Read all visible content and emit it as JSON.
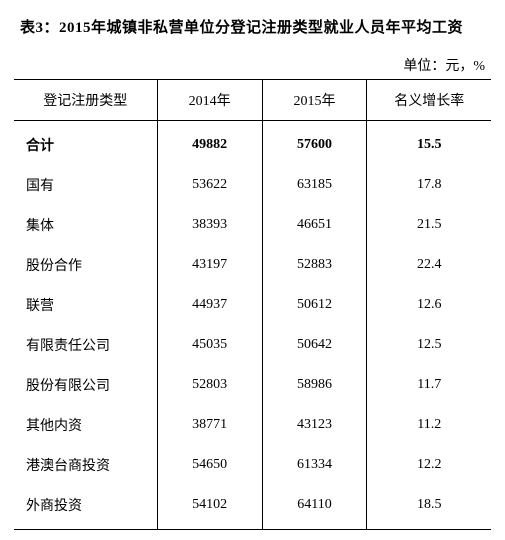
{
  "title": "表3：2015年城镇非私营单位分登记注册类型就业人员年平均工资",
  "unit": "单位：元，%",
  "columns": [
    "登记注册类型",
    "2014年",
    "2015年",
    "名义增长率"
  ],
  "rows": [
    {
      "cells": [
        "合计",
        "49882",
        "57600",
        "15.5"
      ],
      "bold": true
    },
    {
      "cells": [
        "国有",
        "53622",
        "63185",
        "17.8"
      ],
      "bold": false
    },
    {
      "cells": [
        "集体",
        "38393",
        "46651",
        "21.5"
      ],
      "bold": false
    },
    {
      "cells": [
        "股份合作",
        "43197",
        "52883",
        "22.4"
      ],
      "bold": false
    },
    {
      "cells": [
        "联营",
        "44937",
        "50612",
        "12.6"
      ],
      "bold": false
    },
    {
      "cells": [
        "有限责任公司",
        "45035",
        "50642",
        "12.5"
      ],
      "bold": false
    },
    {
      "cells": [
        "股份有限公司",
        "52803",
        "58986",
        "11.7"
      ],
      "bold": false
    },
    {
      "cells": [
        "其他内资",
        "38771",
        "43123",
        "11.2"
      ],
      "bold": false
    },
    {
      "cells": [
        "港澳台商投资",
        "54650",
        "61334",
        "12.2"
      ],
      "bold": false
    },
    {
      "cells": [
        "外商投资",
        "54102",
        "64110",
        "18.5"
      ],
      "bold": false
    }
  ]
}
